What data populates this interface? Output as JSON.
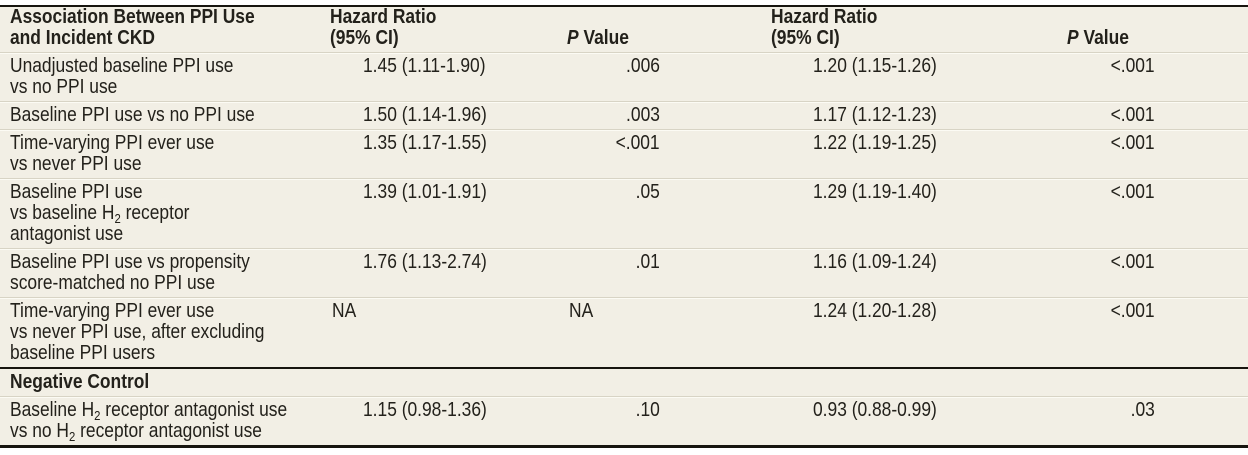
{
  "figure_title": "Association Between PPI Use and Incident CKD",
  "colors": {
    "background": "#f2efe5",
    "rule_dark": "#17150f",
    "rule_light": "#d8d4c5",
    "text": "#23211b"
  },
  "header": {
    "label": [
      [
        {
          "t": "Association Between PPI Use"
        }
      ],
      [
        {
          "t": "and Incident CKD"
        }
      ]
    ],
    "hr1": [
      [
        {
          "t": "Hazard Ratio"
        }
      ],
      [
        {
          "t": "(95% CI)"
        }
      ]
    ],
    "p1": [
      [
        {
          "i": "P"
        },
        {
          "t": " Value"
        }
      ]
    ],
    "hr2": [
      [
        {
          "t": "Hazard Ratio"
        }
      ],
      [
        {
          "t": "(95% CI)"
        }
      ]
    ],
    "p2": [
      [
        {
          "i": "P"
        },
        {
          "t": " Value"
        }
      ]
    ]
  },
  "rows": [
    {
      "label": [
        [
          {
            "t": "Unadjusted baseline PPI use"
          }
        ],
        [
          {
            "t": "vs no PPI use"
          }
        ]
      ],
      "hr1": "1.45 (1.11-1.90)",
      "p1": ".006",
      "hr2": "1.20 (1.15-1.26)",
      "p2": "<.001"
    },
    {
      "label": [
        [
          {
            "t": "Baseline PPI use vs no PPI use"
          }
        ]
      ],
      "hr1": "1.50 (1.14-1.96)",
      "p1": ".003",
      "hr2": "1.17 (1.12-1.23)",
      "p2": "<.001"
    },
    {
      "label": [
        [
          {
            "t": "Time-varying PPI ever use"
          }
        ],
        [
          {
            "t": "vs never PPI use"
          }
        ]
      ],
      "hr1": "1.35 (1.17-1.55)",
      "p1": "<.001",
      "hr2": "1.22 (1.19-1.25)",
      "p2": "<.001"
    },
    {
      "label": [
        [
          {
            "t": "Baseline PPI use"
          }
        ],
        [
          {
            "t": "vs baseline H"
          },
          {
            "sub": "2"
          },
          {
            "t": " receptor"
          }
        ],
        [
          {
            "t": "antagonist use"
          }
        ]
      ],
      "hr1": "1.39 (1.01-1.91)",
      "p1": ".05",
      "hr2": "1.29 (1.19-1.40)",
      "p2": "<.001"
    },
    {
      "label": [
        [
          {
            "t": "Baseline PPI use vs propensity"
          }
        ],
        [
          {
            "t": "score-matched no PPI use"
          }
        ]
      ],
      "hr1": "1.76 (1.13-2.74)",
      "p1": ".01",
      "hr2": "1.16 (1.09-1.24)",
      "p2": "<.001"
    },
    {
      "label": [
        [
          {
            "t": "Time-varying PPI ever use"
          }
        ],
        [
          {
            "t": "vs never PPI use, after excluding"
          }
        ],
        [
          {
            "t": "baseline PPI users"
          }
        ]
      ],
      "hr1": "NA",
      "p1": "NA",
      "hr2": "1.24 (1.20-1.28)",
      "p2": "<.001"
    },
    {
      "label": [
        [
          {
            "t": "Baseline H"
          },
          {
            "sub": "2"
          },
          {
            "t": " receptor antagonist use"
          }
        ],
        [
          {
            "t": "vs no H"
          },
          {
            "sub": "2"
          },
          {
            "t": " receptor antagonist use"
          }
        ]
      ],
      "hr1": "1.15 (0.98-1.36)",
      "p1": ".10",
      "hr2": "0.93 (0.88-0.99)",
      "p2": ".03"
    }
  ],
  "section": {
    "title": "Negative Control"
  }
}
